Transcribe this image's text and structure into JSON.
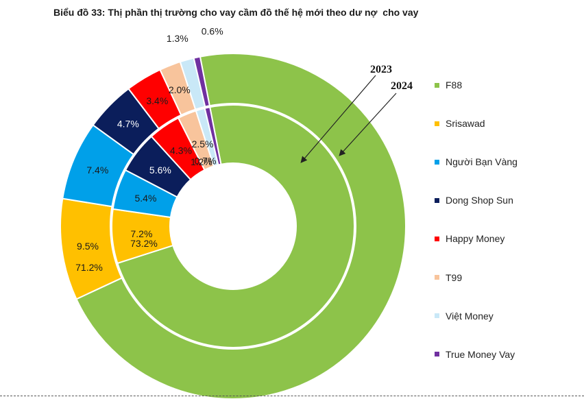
{
  "title": "Biểu đồ 33: Thị phần thị trường cho vay cầm đồ thế hệ mới theo dư nợ  cho vay",
  "chart_data": {
    "type": "donut",
    "categories": [
      "F88",
      "Srisawad",
      "Người Bạn Vàng",
      "Dong Shop Sun",
      "Happy Money",
      "T99",
      "Việt Money",
      "True Money Vay"
    ],
    "colors": [
      "#8DC34A",
      "#FFC000",
      "#00A0E9",
      "#0B1E5B",
      "#FF0000",
      "#F8C49C",
      "#C9E8F7",
      "#7030A0"
    ],
    "series": [
      {
        "name": "2023",
        "ring": "inner",
        "values": [
          73.2,
          7.2,
          5.4,
          5.6,
          4.3,
          2.5,
          1.2,
          0.7
        ],
        "labels": [
          "73.2%",
          "7.2%",
          "5.4%",
          "5.6%",
          "4.3%",
          "2.5%",
          "1.2%",
          "0.7%"
        ]
      },
      {
        "name": "2024",
        "ring": "outer",
        "values": [
          71.2,
          9.5,
          7.4,
          4.7,
          3.4,
          2.0,
          1.3,
          0.6
        ],
        "labels": [
          "71.2%",
          "9.5%",
          "7.4%",
          "4.7%",
          "3.4%",
          "2.0%",
          "1.3%",
          "0.6%"
        ]
      }
    ],
    "legend_position": "right"
  }
}
